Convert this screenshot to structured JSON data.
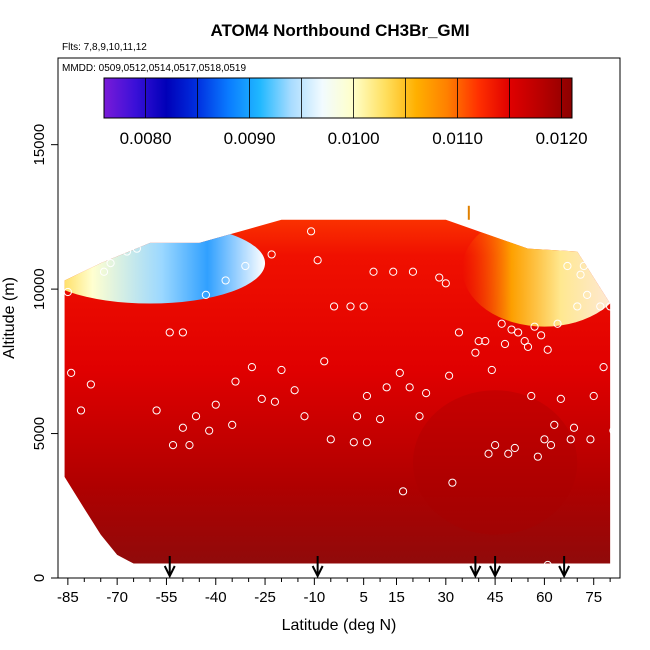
{
  "chart_data": {
    "type": "heatmap",
    "title": "ATOM4 Northbound CH3Br_GMI",
    "flights_note": "Flts: 7,8,9,10,11,12",
    "dates_note": "MMDD: 0509,0512,0514,0517,0518,0519",
    "xlabel": "Latitude (deg N)",
    "ylabel": "Altitude (m)",
    "xlim": [
      -88,
      83
    ],
    "ylim": [
      0,
      18000
    ],
    "x_ticks": [
      -85,
      -70,
      -55,
      -40,
      -25,
      -10,
      5,
      15,
      30,
      45,
      60,
      75
    ],
    "x_tick_labels": [
      "-85",
      "-70",
      "-55",
      "-40",
      "-25",
      "-10",
      "5",
      "15",
      "30",
      "45",
      "60",
      "75"
    ],
    "y_ticks": [
      0,
      5000,
      10000,
      15000
    ],
    "y_tick_labels": [
      "0",
      "5000",
      "10000",
      "15000"
    ],
    "colorbar": {
      "min": 0.0076,
      "max": 0.0121,
      "ticks": [
        0.008,
        0.009,
        0.01,
        0.011,
        0.012
      ],
      "tick_labels": [
        "0.0080",
        "0.0090",
        "0.0100",
        "0.0110",
        "0.0120"
      ],
      "colors": [
        "#7a1bd8",
        "#3a10d8",
        "#0000b8",
        "#0030e0",
        "#0a7cff",
        "#20b8ff",
        "#a8dcff",
        "#f2fbff",
        "#ffffc8",
        "#ffe060",
        "#ffb000",
        "#ff8000",
        "#ff3000",
        "#e00000",
        "#b80000",
        "#8c0000"
      ]
    },
    "field_note": "Mostly red (~0.0115–0.0120) field; darker red near surface; blue/white low values near 10000–12000 m south of -30 and a yellow plume near 30–45 N above 9000 m.",
    "top_edge": [
      {
        "x": -86,
        "y": 10300
      },
      {
        "x": -75,
        "y": 10900
      },
      {
        "x": -60,
        "y": 11600
      },
      {
        "x": -45,
        "y": 11600
      },
      {
        "x": -20,
        "y": 12400
      },
      {
        "x": 30,
        "y": 12400
      },
      {
        "x": 55,
        "y": 11400
      },
      {
        "x": 70,
        "y": 11300
      },
      {
        "x": 80,
        "y": 9500
      }
    ],
    "bottom_edge": [
      {
        "x": -86,
        "y": 3500
      },
      {
        "x": -80,
        "y": 2400
      },
      {
        "x": -75,
        "y": 1500
      },
      {
        "x": -70,
        "y": 800
      },
      {
        "x": -65,
        "y": 500
      },
      {
        "x": 80,
        "y": 500
      }
    ],
    "sample_points": [
      {
        "x": -85,
        "y": 9900
      },
      {
        "x": -84,
        "y": 7100
      },
      {
        "x": -81,
        "y": 5800
      },
      {
        "x": -78,
        "y": 6700
      },
      {
        "x": -74,
        "y": 10600
      },
      {
        "x": -72,
        "y": 10900
      },
      {
        "x": -67,
        "y": 11300
      },
      {
        "x": -64,
        "y": 11400
      },
      {
        "x": -58,
        "y": 5800
      },
      {
        "x": -54,
        "y": 8500
      },
      {
        "x": -53,
        "y": 4600
      },
      {
        "x": -50,
        "y": 5200
      },
      {
        "x": -50,
        "y": 8500
      },
      {
        "x": -48,
        "y": 4600
      },
      {
        "x": -46,
        "y": 5600
      },
      {
        "x": -43,
        "y": 9800
      },
      {
        "x": -42,
        "y": 5100
      },
      {
        "x": -40,
        "y": 6000
      },
      {
        "x": -37,
        "y": 10300
      },
      {
        "x": -35,
        "y": 5300
      },
      {
        "x": -34,
        "y": 6800
      },
      {
        "x": -31,
        "y": 10800
      },
      {
        "x": -29,
        "y": 7300
      },
      {
        "x": -26,
        "y": 6200
      },
      {
        "x": -23,
        "y": 11200
      },
      {
        "x": -22,
        "y": 6100
      },
      {
        "x": -20,
        "y": 7200
      },
      {
        "x": -16,
        "y": 6500
      },
      {
        "x": -13,
        "y": 5600
      },
      {
        "x": -11,
        "y": 12000
      },
      {
        "x": -9,
        "y": 11000
      },
      {
        "x": -7,
        "y": 7500
      },
      {
        "x": -5,
        "y": 4800
      },
      {
        "x": -4,
        "y": 9400
      },
      {
        "x": 1,
        "y": 9400
      },
      {
        "x": 2,
        "y": 4700
      },
      {
        "x": 3,
        "y": 5600
      },
      {
        "x": 5,
        "y": 9400
      },
      {
        "x": 6,
        "y": 6300
      },
      {
        "x": 6,
        "y": 4700
      },
      {
        "x": 8,
        "y": 10600
      },
      {
        "x": 10,
        "y": 5500
      },
      {
        "x": 12,
        "y": 6600
      },
      {
        "x": 14,
        "y": 10600
      },
      {
        "x": 16,
        "y": 7100
      },
      {
        "x": 17,
        "y": 3000
      },
      {
        "x": 19,
        "y": 6600
      },
      {
        "x": 20,
        "y": 10600
      },
      {
        "x": 22,
        "y": 5600
      },
      {
        "x": 24,
        "y": 6400
      },
      {
        "x": 28,
        "y": 10400
      },
      {
        "x": 30,
        "y": 10200
      },
      {
        "x": 31,
        "y": 7000
      },
      {
        "x": 32,
        "y": 3300
      },
      {
        "x": 34,
        "y": 8500
      },
      {
        "x": 39,
        "y": 7800
      },
      {
        "x": 40,
        "y": 8200
      },
      {
        "x": 42,
        "y": 8200
      },
      {
        "x": 43,
        "y": 4300
      },
      {
        "x": 44,
        "y": 7200
      },
      {
        "x": 45,
        "y": 4600
      },
      {
        "x": 47,
        "y": 8800
      },
      {
        "x": 48,
        "y": 8100
      },
      {
        "x": 49,
        "y": 4300
      },
      {
        "x": 50,
        "y": 8600
      },
      {
        "x": 51,
        "y": 4500
      },
      {
        "x": 52,
        "y": 8500
      },
      {
        "x": 54,
        "y": 8200
      },
      {
        "x": 55,
        "y": 8000
      },
      {
        "x": 56,
        "y": 6300
      },
      {
        "x": 57,
        "y": 8700
      },
      {
        "x": 58,
        "y": 4200
      },
      {
        "x": 59,
        "y": 8400
      },
      {
        "x": 60,
        "y": 4800
      },
      {
        "x": 61,
        "y": 7900
      },
      {
        "x": 62,
        "y": 4600
      },
      {
        "x": 63,
        "y": 5300
      },
      {
        "x": 64,
        "y": 8800
      },
      {
        "x": 65,
        "y": 6200
      },
      {
        "x": 67,
        "y": 10800
      },
      {
        "x": 68,
        "y": 4800
      },
      {
        "x": 69,
        "y": 5200
      },
      {
        "x": 70,
        "y": 9400
      },
      {
        "x": 71,
        "y": 10500
      },
      {
        "x": 72,
        "y": 10800
      },
      {
        "x": 73,
        "y": 9800
      },
      {
        "x": 74,
        "y": 4800
      },
      {
        "x": 75,
        "y": 6300
      },
      {
        "x": 77,
        "y": 9400
      },
      {
        "x": 78,
        "y": 7300
      },
      {
        "x": 79,
        "y": 10100
      },
      {
        "x": 80,
        "y": 9400
      },
      {
        "x": 81,
        "y": 5100
      },
      {
        "x": -55,
        "y": 300
      },
      {
        "x": -51,
        "y": 200
      },
      {
        "x": -46,
        "y": 150
      },
      {
        "x": -41,
        "y": 200
      },
      {
        "x": -34,
        "y": 150
      },
      {
        "x": -29,
        "y": 150
      },
      {
        "x": -22,
        "y": 150
      },
      {
        "x": -15,
        "y": 200
      },
      {
        "x": -8,
        "y": 200
      },
      {
        "x": -3,
        "y": 150
      },
      {
        "x": 2,
        "y": 200
      },
      {
        "x": 6,
        "y": 250
      },
      {
        "x": 12,
        "y": 250
      },
      {
        "x": 18,
        "y": 300
      },
      {
        "x": 23,
        "y": 300
      },
      {
        "x": 30,
        "y": 250
      },
      {
        "x": 36,
        "y": 250
      },
      {
        "x": 45,
        "y": 250
      },
      {
        "x": 49,
        "y": 350
      },
      {
        "x": 57,
        "y": 200
      },
      {
        "x": 60,
        "y": 250
      },
      {
        "x": 61,
        "y": 450
      },
      {
        "x": 62,
        "y": 200
      },
      {
        "x": 65,
        "y": 250
      },
      {
        "x": 70,
        "y": 250
      },
      {
        "x": 74,
        "y": 200
      },
      {
        "x": 78,
        "y": 250
      },
      {
        "x": 81,
        "y": 250
      }
    ],
    "flight_markers_x": [
      -54,
      -9,
      39,
      45,
      66
    ],
    "top_marker": {
      "x": 37,
      "y": 12400
    },
    "grid": false,
    "legend": "colorbar-top"
  }
}
